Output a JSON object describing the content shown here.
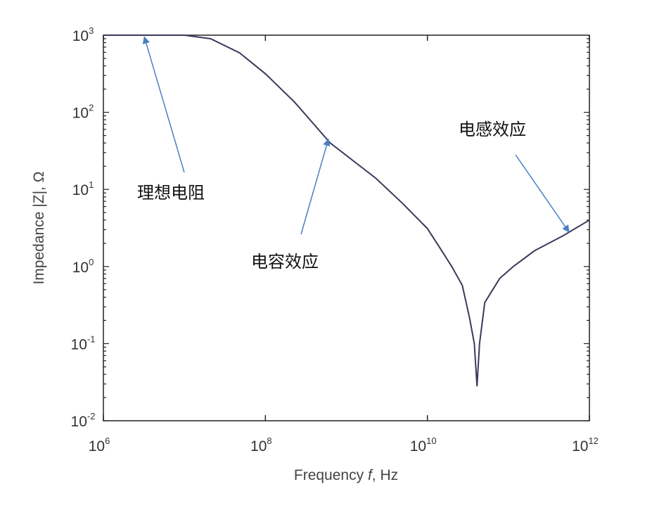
{
  "chart_data": {
    "type": "line",
    "title": "",
    "xlabel": "Frequency f, Hz",
    "xlabel_parts": {
      "before": "Frequency ",
      "italic": "f",
      "after": ", Hz"
    },
    "ylabel": "Impedance |Z|, Ω",
    "xscale": "log",
    "yscale": "log",
    "xlim": [
      1000000.0,
      1000000000000.0
    ],
    "ylim": [
      0.01,
      1000
    ],
    "xticks": [
      {
        "base": "10",
        "exp": "6",
        "value": 1000000.0
      },
      {
        "base": "10",
        "exp": "8",
        "value": 100000000.0
      },
      {
        "base": "10",
        "exp": "10",
        "value": 10000000000.0
      },
      {
        "base": "10",
        "exp": "12",
        "value": 1000000000000.0
      }
    ],
    "yticks": [
      {
        "base": "10",
        "exp": "3",
        "value": 1000
      },
      {
        "base": "10",
        "exp": "2",
        "value": 100
      },
      {
        "base": "10",
        "exp": "1",
        "value": 10
      },
      {
        "base": "10",
        "exp": "0",
        "value": 1
      },
      {
        "base": "10",
        "exp": "-1",
        "value": 0.1
      },
      {
        "base": "10",
        "exp": "-2",
        "value": 0.01
      }
    ],
    "grid": false,
    "line_color": "#3a3a5a",
    "arrow_color": "#4a7fc1",
    "series": [
      {
        "x": [
          1000000.0,
          10000000.0,
          21000000.0,
          48000000.0,
          100000000.0,
          230000000.0,
          630000000.0,
          2300000000.0,
          5000000000.0,
          10000000000.0,
          14000000000.0,
          20000000000.0,
          27000000000.0,
          33000000000.0,
          38000000000.0,
          41000000000.0,
          44000000000.0,
          51000000000.0,
          78000000000.0,
          115000000000.0,
          210000000000.0,
          470000000000.0,
          1000000000000.0
        ],
        "y": [
          1000,
          1000,
          900,
          590,
          316,
          135,
          40,
          14,
          6.5,
          3.1,
          1.8,
          1.0,
          0.57,
          0.22,
          0.1,
          0.028,
          0.1,
          0.34,
          0.7,
          1.0,
          1.6,
          2.5,
          4.0
        ]
      }
    ],
    "annotations": [
      {
        "text": "理想电阻",
        "arrow_to": [
          3200000.0,
          950
        ]
      },
      {
        "text": "电容效应",
        "arrow_to": [
          600000000.0,
          45
        ]
      },
      {
        "text": "电感效应",
        "arrow_to": [
          560000000000.0,
          2.8
        ]
      }
    ]
  }
}
